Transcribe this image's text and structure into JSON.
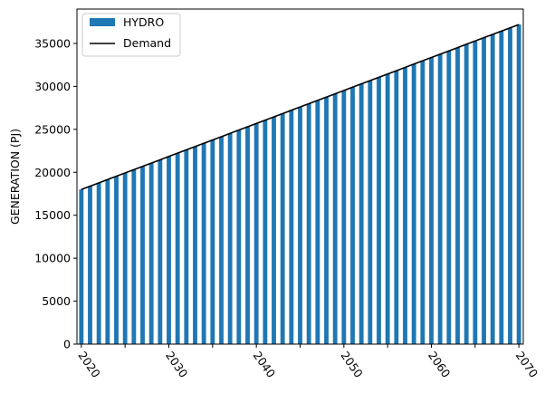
{
  "chart_data": {
    "type": "bar",
    "title": "",
    "xlabel": "",
    "ylabel": "GENERATION (PJ)",
    "x_start": 2020,
    "x_end": 2070,
    "x_tick_labels": [
      "2020",
      "2030",
      "2040",
      "2050",
      "2060",
      "2070"
    ],
    "y_ticks": [
      0,
      5000,
      10000,
      15000,
      20000,
      25000,
      30000,
      35000
    ],
    "ylim": [
      0,
      39000
    ],
    "grid": false,
    "legend_position": "upper-left",
    "series": [
      {
        "name": "HYDRO",
        "kind": "bar",
        "color": "#1f77b4",
        "values": [
          18000,
          18384,
          18768,
          19152,
          19536,
          19920,
          20304,
          20688,
          21072,
          21456,
          21840,
          22224,
          22608,
          22992,
          23376,
          23760,
          24144,
          24528,
          24912,
          25296,
          25680,
          26064,
          26448,
          26832,
          27216,
          27600,
          27984,
          28368,
          28752,
          29136,
          29520,
          29904,
          30288,
          30672,
          31056,
          31440,
          31824,
          32208,
          32592,
          32976,
          33360,
          33744,
          34128,
          34512,
          34896,
          35280,
          35664,
          36048,
          36432,
          36816,
          37200
        ]
      },
      {
        "name": "Demand",
        "kind": "line",
        "color": "#000000",
        "values": [
          18000,
          18384,
          18768,
          19152,
          19536,
          19920,
          20304,
          20688,
          21072,
          21456,
          21840,
          22224,
          22608,
          22992,
          23376,
          23760,
          24144,
          24528,
          24912,
          25296,
          25680,
          26064,
          26448,
          26832,
          27216,
          27600,
          27984,
          28368,
          28752,
          29136,
          29520,
          29904,
          30288,
          30672,
          31056,
          31440,
          31824,
          32208,
          32592,
          32976,
          33360,
          33744,
          34128,
          34512,
          34896,
          35280,
          35664,
          36048,
          36432,
          36816,
          37200
        ]
      }
    ]
  }
}
